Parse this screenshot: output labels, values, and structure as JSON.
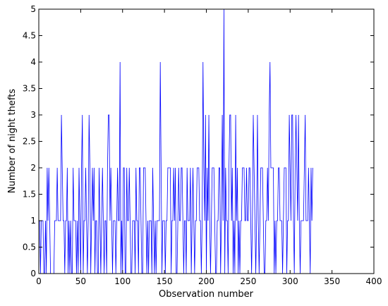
{
  "chart_data": {
    "type": "line",
    "title": "",
    "xlabel": "Observation number",
    "ylabel": "Number of night thefts",
    "xlim": [
      0,
      400
    ],
    "ylim": [
      0,
      5
    ],
    "xticks": [
      0,
      50,
      100,
      150,
      200,
      250,
      300,
      350,
      400
    ],
    "yticks": [
      0,
      0.5,
      1,
      1.5,
      2,
      2.5,
      3,
      3.5,
      4,
      4.5,
      5
    ],
    "grid": false,
    "line_color": "#0000ff",
    "series": [
      {
        "x_start": 1,
        "x_step": 1,
        "values": [
          1,
          0,
          1,
          1,
          1,
          0,
          0,
          1,
          0,
          2,
          1,
          2,
          1,
          0,
          0,
          0,
          0,
          0,
          1,
          1,
          1,
          2,
          1,
          1,
          1,
          1,
          3,
          2,
          1,
          1,
          0,
          1,
          1,
          2,
          0,
          1,
          0,
          1,
          0,
          0,
          2,
          1,
          1,
          1,
          0,
          1,
          0,
          2,
          1,
          0,
          2,
          3,
          0,
          1,
          1,
          2,
          1,
          0,
          1,
          3,
          2,
          0,
          1,
          2,
          1,
          2,
          0,
          1,
          1,
          0,
          0,
          2,
          1,
          0,
          1,
          2,
          1,
          0,
          1,
          1,
          0,
          2,
          3,
          3,
          1,
          2,
          1,
          0,
          1,
          1,
          1,
          0,
          1,
          2,
          1,
          1,
          4,
          0,
          1,
          0,
          2,
          2,
          0,
          0,
          2,
          1,
          1,
          2,
          1,
          0,
          0,
          1,
          1,
          1,
          0,
          2,
          1,
          1,
          0,
          2,
          2,
          1,
          0,
          0,
          2,
          2,
          2,
          1,
          0,
          1,
          0,
          1,
          1,
          1,
          0,
          2,
          1,
          0,
          1,
          0,
          1,
          1,
          1,
          1,
          4,
          2,
          0,
          1,
          1,
          1,
          0,
          1,
          1,
          2,
          2,
          2,
          2,
          0,
          1,
          1,
          2,
          1,
          2,
          0,
          0,
          1,
          2,
          1,
          1,
          2,
          2,
          1,
          0,
          1,
          1,
          0,
          2,
          1,
          1,
          1,
          2,
          0,
          1,
          2,
          1,
          0,
          1,
          1,
          2,
          2,
          2,
          1,
          1,
          0,
          1,
          4,
          2,
          1,
          3,
          0,
          2,
          1,
          3,
          1,
          0,
          1,
          2,
          2,
          2,
          1,
          0,
          0,
          1,
          1,
          2,
          2,
          0,
          1,
          3,
          1,
          5,
          0,
          2,
          1,
          1,
          0,
          2,
          3,
          3,
          1,
          2,
          0,
          1,
          0,
          3,
          1,
          2,
          0,
          1,
          0,
          1,
          1,
          2,
          2,
          2,
          1,
          1,
          2,
          1,
          1,
          2,
          2,
          1,
          0,
          1,
          3,
          2,
          1,
          0,
          1,
          3,
          1,
          0,
          1,
          2,
          2,
          2,
          1,
          0,
          0,
          1,
          1,
          2,
          1,
          3,
          4,
          2,
          2,
          2,
          2,
          0,
          1,
          0,
          1,
          1,
          2,
          2,
          1,
          1,
          1,
          0,
          1,
          2,
          2,
          2,
          0,
          1,
          1,
          3,
          2,
          1,
          3,
          3,
          1,
          0,
          2,
          3,
          2,
          1,
          3,
          1,
          0,
          1,
          1,
          1,
          1,
          2,
          3,
          1,
          1,
          1,
          2,
          1,
          0,
          2,
          1,
          2
        ]
      }
    ]
  }
}
